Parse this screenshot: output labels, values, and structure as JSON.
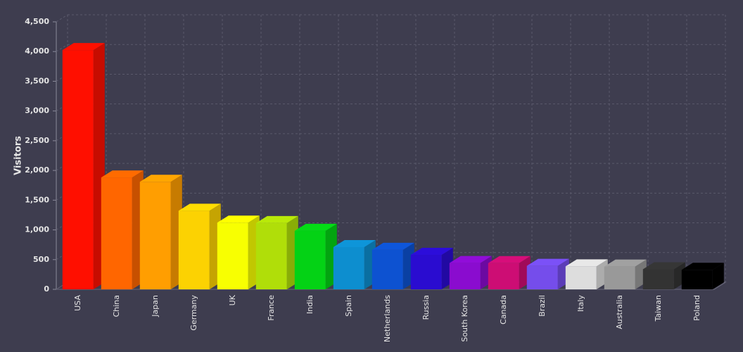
{
  "chart_data": {
    "type": "bar",
    "y_label": "Visitors",
    "categories": [
      "USA",
      "China",
      "Japan",
      "Germany",
      "UK",
      "France",
      "India",
      "Spain",
      "Netherlands",
      "Russia",
      "South Korea",
      "Canada",
      "Brazil",
      "Italy",
      "Australia",
      "Taiwan",
      "Poland"
    ],
    "values": [
      4025,
      1882,
      1809,
      1322,
      1122,
      1114,
      984,
      711,
      665,
      580,
      443,
      441,
      395,
      386,
      384,
      338,
      328
    ],
    "colors": [
      "#ff0f00",
      "#ff6600",
      "#ff9e01",
      "#fcd202",
      "#f8ff01",
      "#b0de09",
      "#04d215",
      "#0d8ecf",
      "#0d52d1",
      "#2a0cd0",
      "#8a0ccf",
      "#cd0d74",
      "#754deb",
      "#dddddd",
      "#999999",
      "#333333",
      "#000000"
    ],
    "ylim": [
      0,
      4500
    ],
    "yticks": [
      0,
      500,
      {
        "value": 1000,
        "label": "1,000"
      },
      {
        "value": 1500,
        "label": "1,500"
      },
      {
        "value": 2000,
        "label": "2,000"
      },
      {
        "value": 2500,
        "label": "2,500"
      },
      {
        "value": 3000,
        "label": "3,000"
      },
      {
        "value": 3500,
        "label": "3,500"
      },
      {
        "value": 4000,
        "label": "4,000"
      },
      {
        "value": 4500,
        "label": "4,500"
      }
    ],
    "grid": true
  }
}
